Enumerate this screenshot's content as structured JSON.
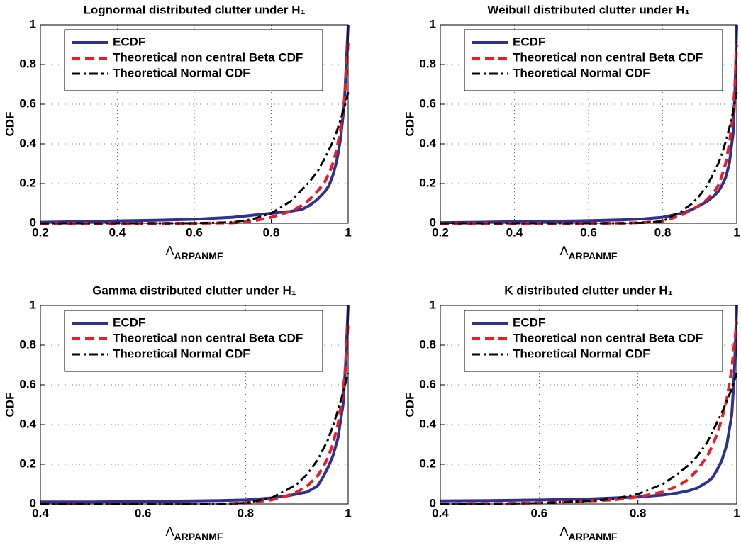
{
  "chart_data": [
    {
      "type": "line",
      "title": "Lognormal distributed clutter under H₁",
      "xlabel": [
        "Λ",
        "ARPANMF"
      ],
      "ylabel": "CDF",
      "xlim": [
        0.2,
        1
      ],
      "ylim": [
        0,
        1
      ],
      "xticks": [
        0.2,
        0.4,
        0.6,
        0.8,
        1
      ],
      "yticks": [
        0,
        0.2,
        0.4,
        0.6,
        0.8,
        1
      ],
      "grid": true,
      "legend": "upper left",
      "x": [
        0.2,
        0.3,
        0.4,
        0.5,
        0.6,
        0.7,
        0.75,
        0.8,
        0.85,
        0.88,
        0.9,
        0.92,
        0.94,
        0.95,
        0.96,
        0.97,
        0.98,
        0.99,
        0.995,
        1
      ],
      "series": [
        {
          "name": "ECDF",
          "color": "#2e3192",
          "style": "solid",
          "values": [
            0.005,
            0.008,
            0.012,
            0.015,
            0.02,
            0.03,
            0.04,
            0.05,
            0.06,
            0.07,
            0.09,
            0.12,
            0.16,
            0.19,
            0.24,
            0.31,
            0.42,
            0.6,
            0.8,
            1
          ]
        },
        {
          "name": "Theoretical non central Beta CDF",
          "color": "#ed1c24",
          "style": "dashed",
          "values": [
            0,
            0,
            0,
            0,
            0,
            0.002,
            0.01,
            0.03,
            0.06,
            0.09,
            0.12,
            0.16,
            0.21,
            0.25,
            0.3,
            0.37,
            0.47,
            0.62,
            0.75,
            0.92
          ]
        },
        {
          "name": "Theoretical Normal CDF",
          "color": "#000000",
          "style": "dashdot",
          "values": [
            0,
            0,
            0,
            0,
            0,
            0.005,
            0.02,
            0.05,
            0.11,
            0.17,
            0.21,
            0.26,
            0.33,
            0.37,
            0.41,
            0.46,
            0.52,
            0.58,
            0.62,
            0.66
          ]
        }
      ]
    },
    {
      "type": "line",
      "title": "Weibull distributed clutter under H₁",
      "xlabel": [
        "Λ",
        "ARPANMF"
      ],
      "ylabel": "CDF",
      "xlim": [
        0.2,
        1
      ],
      "ylim": [
        0,
        1
      ],
      "xticks": [
        0.2,
        0.4,
        0.6,
        0.8,
        1
      ],
      "yticks": [
        0,
        0.2,
        0.4,
        0.6,
        0.8,
        1
      ],
      "grid": true,
      "legend": "upper left",
      "x": [
        0.2,
        0.3,
        0.4,
        0.5,
        0.6,
        0.7,
        0.75,
        0.8,
        0.85,
        0.88,
        0.9,
        0.92,
        0.94,
        0.95,
        0.96,
        0.97,
        0.98,
        0.99,
        0.995,
        1
      ],
      "series": [
        {
          "name": "ECDF",
          "color": "#2e3192",
          "style": "solid",
          "values": [
            0.003,
            0.005,
            0.008,
            0.01,
            0.013,
            0.018,
            0.022,
            0.03,
            0.05,
            0.07,
            0.09,
            0.11,
            0.14,
            0.16,
            0.19,
            0.23,
            0.3,
            0.45,
            0.65,
            1
          ]
        },
        {
          "name": "Theoretical non central Beta CDF",
          "color": "#ed1c24",
          "style": "dashed",
          "values": [
            0,
            0,
            0,
            0,
            0,
            0.001,
            0.004,
            0.01,
            0.04,
            0.07,
            0.09,
            0.12,
            0.16,
            0.19,
            0.24,
            0.3,
            0.4,
            0.55,
            0.7,
            0.9
          ]
        },
        {
          "name": "Theoretical Normal CDF",
          "color": "#000000",
          "style": "dashdot",
          "values": [
            0,
            0,
            0,
            0,
            0,
            0,
            0.002,
            0.01,
            0.06,
            0.1,
            0.14,
            0.19,
            0.26,
            0.3,
            0.35,
            0.41,
            0.48,
            0.56,
            0.61,
            0.66
          ]
        }
      ]
    },
    {
      "type": "line",
      "title": "Gamma distributed clutter under H₁",
      "xlabel": [
        "Λ",
        "ARPANMF"
      ],
      "ylabel": "CDF",
      "xlim": [
        0.4,
        1
      ],
      "ylim": [
        0,
        1
      ],
      "xticks": [
        0.4,
        0.6,
        0.8,
        1
      ],
      "yticks": [
        0,
        0.2,
        0.4,
        0.6,
        0.8,
        1
      ],
      "grid": true,
      "legend": "upper left",
      "x": [
        0.4,
        0.5,
        0.6,
        0.7,
        0.75,
        0.8,
        0.85,
        0.88,
        0.9,
        0.92,
        0.94,
        0.95,
        0.96,
        0.97,
        0.98,
        0.99,
        0.995,
        1
      ],
      "series": [
        {
          "name": "ECDF",
          "color": "#2e3192",
          "style": "solid",
          "values": [
            0.01,
            0.01,
            0.012,
            0.015,
            0.017,
            0.02,
            0.03,
            0.04,
            0.05,
            0.06,
            0.09,
            0.13,
            0.18,
            0.24,
            0.33,
            0.5,
            0.7,
            1
          ]
        },
        {
          "name": "Theoretical non central Beta CDF",
          "color": "#ed1c24",
          "style": "dashed",
          "values": [
            0,
            0,
            0,
            0,
            0,
            0.005,
            0.02,
            0.04,
            0.06,
            0.09,
            0.14,
            0.18,
            0.23,
            0.3,
            0.4,
            0.56,
            0.7,
            0.92
          ]
        },
        {
          "name": "Theoretical Normal CDF",
          "color": "#000000",
          "style": "dashdot",
          "values": [
            0,
            0,
            0,
            0,
            0,
            0.005,
            0.03,
            0.07,
            0.1,
            0.15,
            0.22,
            0.27,
            0.32,
            0.39,
            0.47,
            0.56,
            0.61,
            0.66
          ]
        }
      ]
    },
    {
      "type": "line",
      "title": "K distributed clutter under H₁",
      "xlabel": [
        "Λ",
        "ARPANMF"
      ],
      "ylabel": "CDF",
      "xlim": [
        0.4,
        1
      ],
      "ylim": [
        0,
        1
      ],
      "xticks": [
        0.4,
        0.6,
        0.8,
        1
      ],
      "yticks": [
        0,
        0.2,
        0.4,
        0.6,
        0.8,
        1
      ],
      "grid": true,
      "legend": "upper left",
      "x": [
        0.4,
        0.5,
        0.6,
        0.7,
        0.75,
        0.8,
        0.85,
        0.88,
        0.9,
        0.92,
        0.94,
        0.95,
        0.96,
        0.97,
        0.98,
        0.99,
        0.995,
        1
      ],
      "series": [
        {
          "name": "ECDF",
          "color": "#2e3192",
          "style": "solid",
          "values": [
            0.015,
            0.017,
            0.02,
            0.025,
            0.03,
            0.035,
            0.045,
            0.055,
            0.065,
            0.08,
            0.11,
            0.13,
            0.17,
            0.22,
            0.3,
            0.45,
            0.65,
            1
          ]
        },
        {
          "name": "Theoretical non central Beta CDF",
          "color": "#ed1c24",
          "style": "dashed",
          "values": [
            0,
            0.002,
            0.005,
            0.015,
            0.02,
            0.035,
            0.06,
            0.09,
            0.12,
            0.17,
            0.24,
            0.29,
            0.35,
            0.43,
            0.53,
            0.68,
            0.8,
            0.92
          ]
        },
        {
          "name": "Theoretical Normal CDF",
          "color": "#000000",
          "style": "dashdot",
          "values": [
            0,
            0.001,
            0.004,
            0.015,
            0.025,
            0.05,
            0.1,
            0.15,
            0.19,
            0.24,
            0.31,
            0.36,
            0.41,
            0.46,
            0.52,
            0.58,
            0.62,
            0.66
          ]
        }
      ]
    }
  ]
}
